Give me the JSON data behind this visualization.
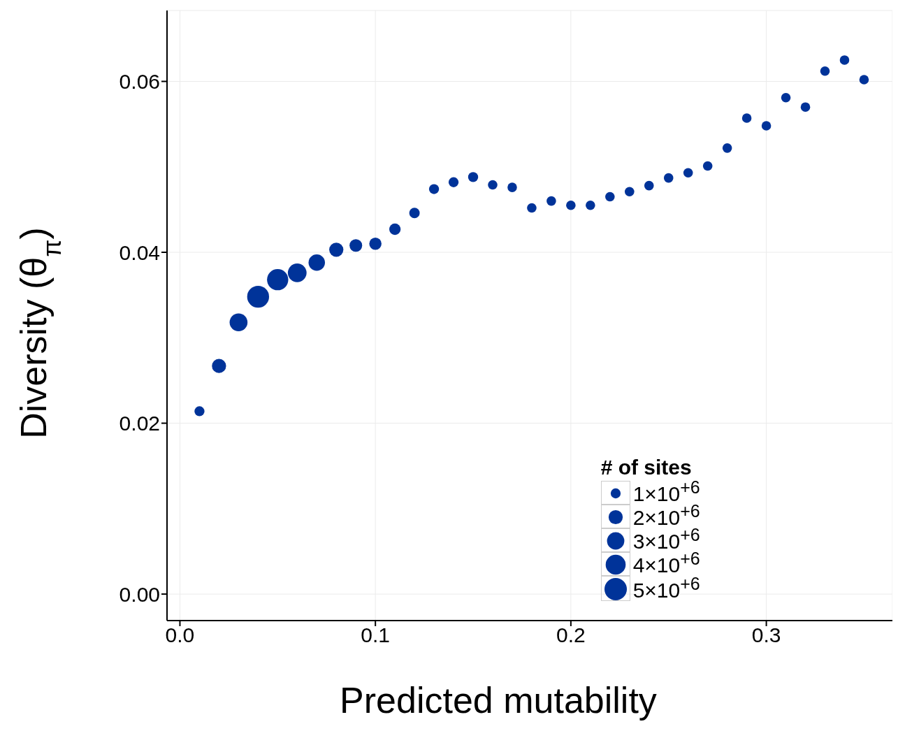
{
  "chart_data": {
    "type": "bubble",
    "xlabel": "Predicted mutability",
    "ylabel": "Diversity (θ$_{π}$)",
    "legend_title": "# of sites",
    "x": [
      0.01,
      0.02,
      0.03,
      0.04,
      0.05,
      0.06,
      0.07,
      0.08,
      0.09,
      0.1,
      0.11,
      0.12,
      0.13,
      0.14,
      0.15,
      0.16,
      0.17,
      0.18,
      0.19,
      0.2,
      0.21,
      0.22,
      0.23,
      0.24,
      0.25,
      0.26,
      0.27,
      0.28,
      0.29,
      0.3,
      0.31,
      0.32,
      0.33,
      0.34,
      0.35
    ],
    "series": [
      {
        "color": "#003399",
        "values": [
          0.0214,
          0.0267,
          0.0318,
          0.0348,
          0.0368,
          0.0376,
          0.0388,
          0.0403,
          0.0408,
          0.041,
          0.0427,
          0.0446,
          0.0474,
          0.0482,
          0.0488,
          0.0479,
          0.0476,
          0.0452,
          0.046,
          0.0455,
          0.0455,
          0.0465,
          0.0471,
          0.0478,
          0.0487,
          0.0493,
          0.0501,
          0.0522,
          0.0557,
          0.0548,
          0.0581,
          0.057,
          0.0612,
          0.0625,
          0.0602
        ],
        "sizes": [
          1000000,
          2000000,
          3200000,
          4800000,
          4500000,
          3500000,
          2700000,
          2000000,
          1600000,
          1500000,
          1300000,
          1100000,
          1000000,
          1000000,
          1000000,
          900000,
          900000,
          900000,
          900000,
          900000,
          900000,
          900000,
          900000,
          900000,
          900000,
          900000,
          900000,
          900000,
          900000,
          900000,
          900000,
          900000,
          900000,
          900000,
          900000
        ]
      }
    ],
    "size_legend": [
      {
        "value": 1000000,
        "label": "1×10$^{+6}$"
      },
      {
        "value": 2000000,
        "label": "2×10$^{+6}$"
      },
      {
        "value": 3000000,
        "label": "3×10$^{+6}$"
      },
      {
        "value": 4000000,
        "label": "4×10$^{+6}$"
      },
      {
        "value": 5000000,
        "label": "5×10$^{+6}$"
      }
    ],
    "xlim": [
      -0.0066,
      0.3645
    ],
    "ylim": [
      -0.0031,
      0.0683
    ],
    "xticks": [
      {
        "value": 0,
        "label": "0.0"
      },
      {
        "value": 0.1,
        "label": "0.1"
      },
      {
        "value": 0.2,
        "label": "0.2"
      },
      {
        "value": 0.3,
        "label": "0.3"
      }
    ],
    "yticks": [
      {
        "value": 0,
        "label": "0.00"
      },
      {
        "value": 0.02,
        "label": "0.02"
      },
      {
        "value": 0.04,
        "label": "0.04"
      },
      {
        "value": 0.06,
        "label": "0.06"
      }
    ],
    "grid": true
  }
}
